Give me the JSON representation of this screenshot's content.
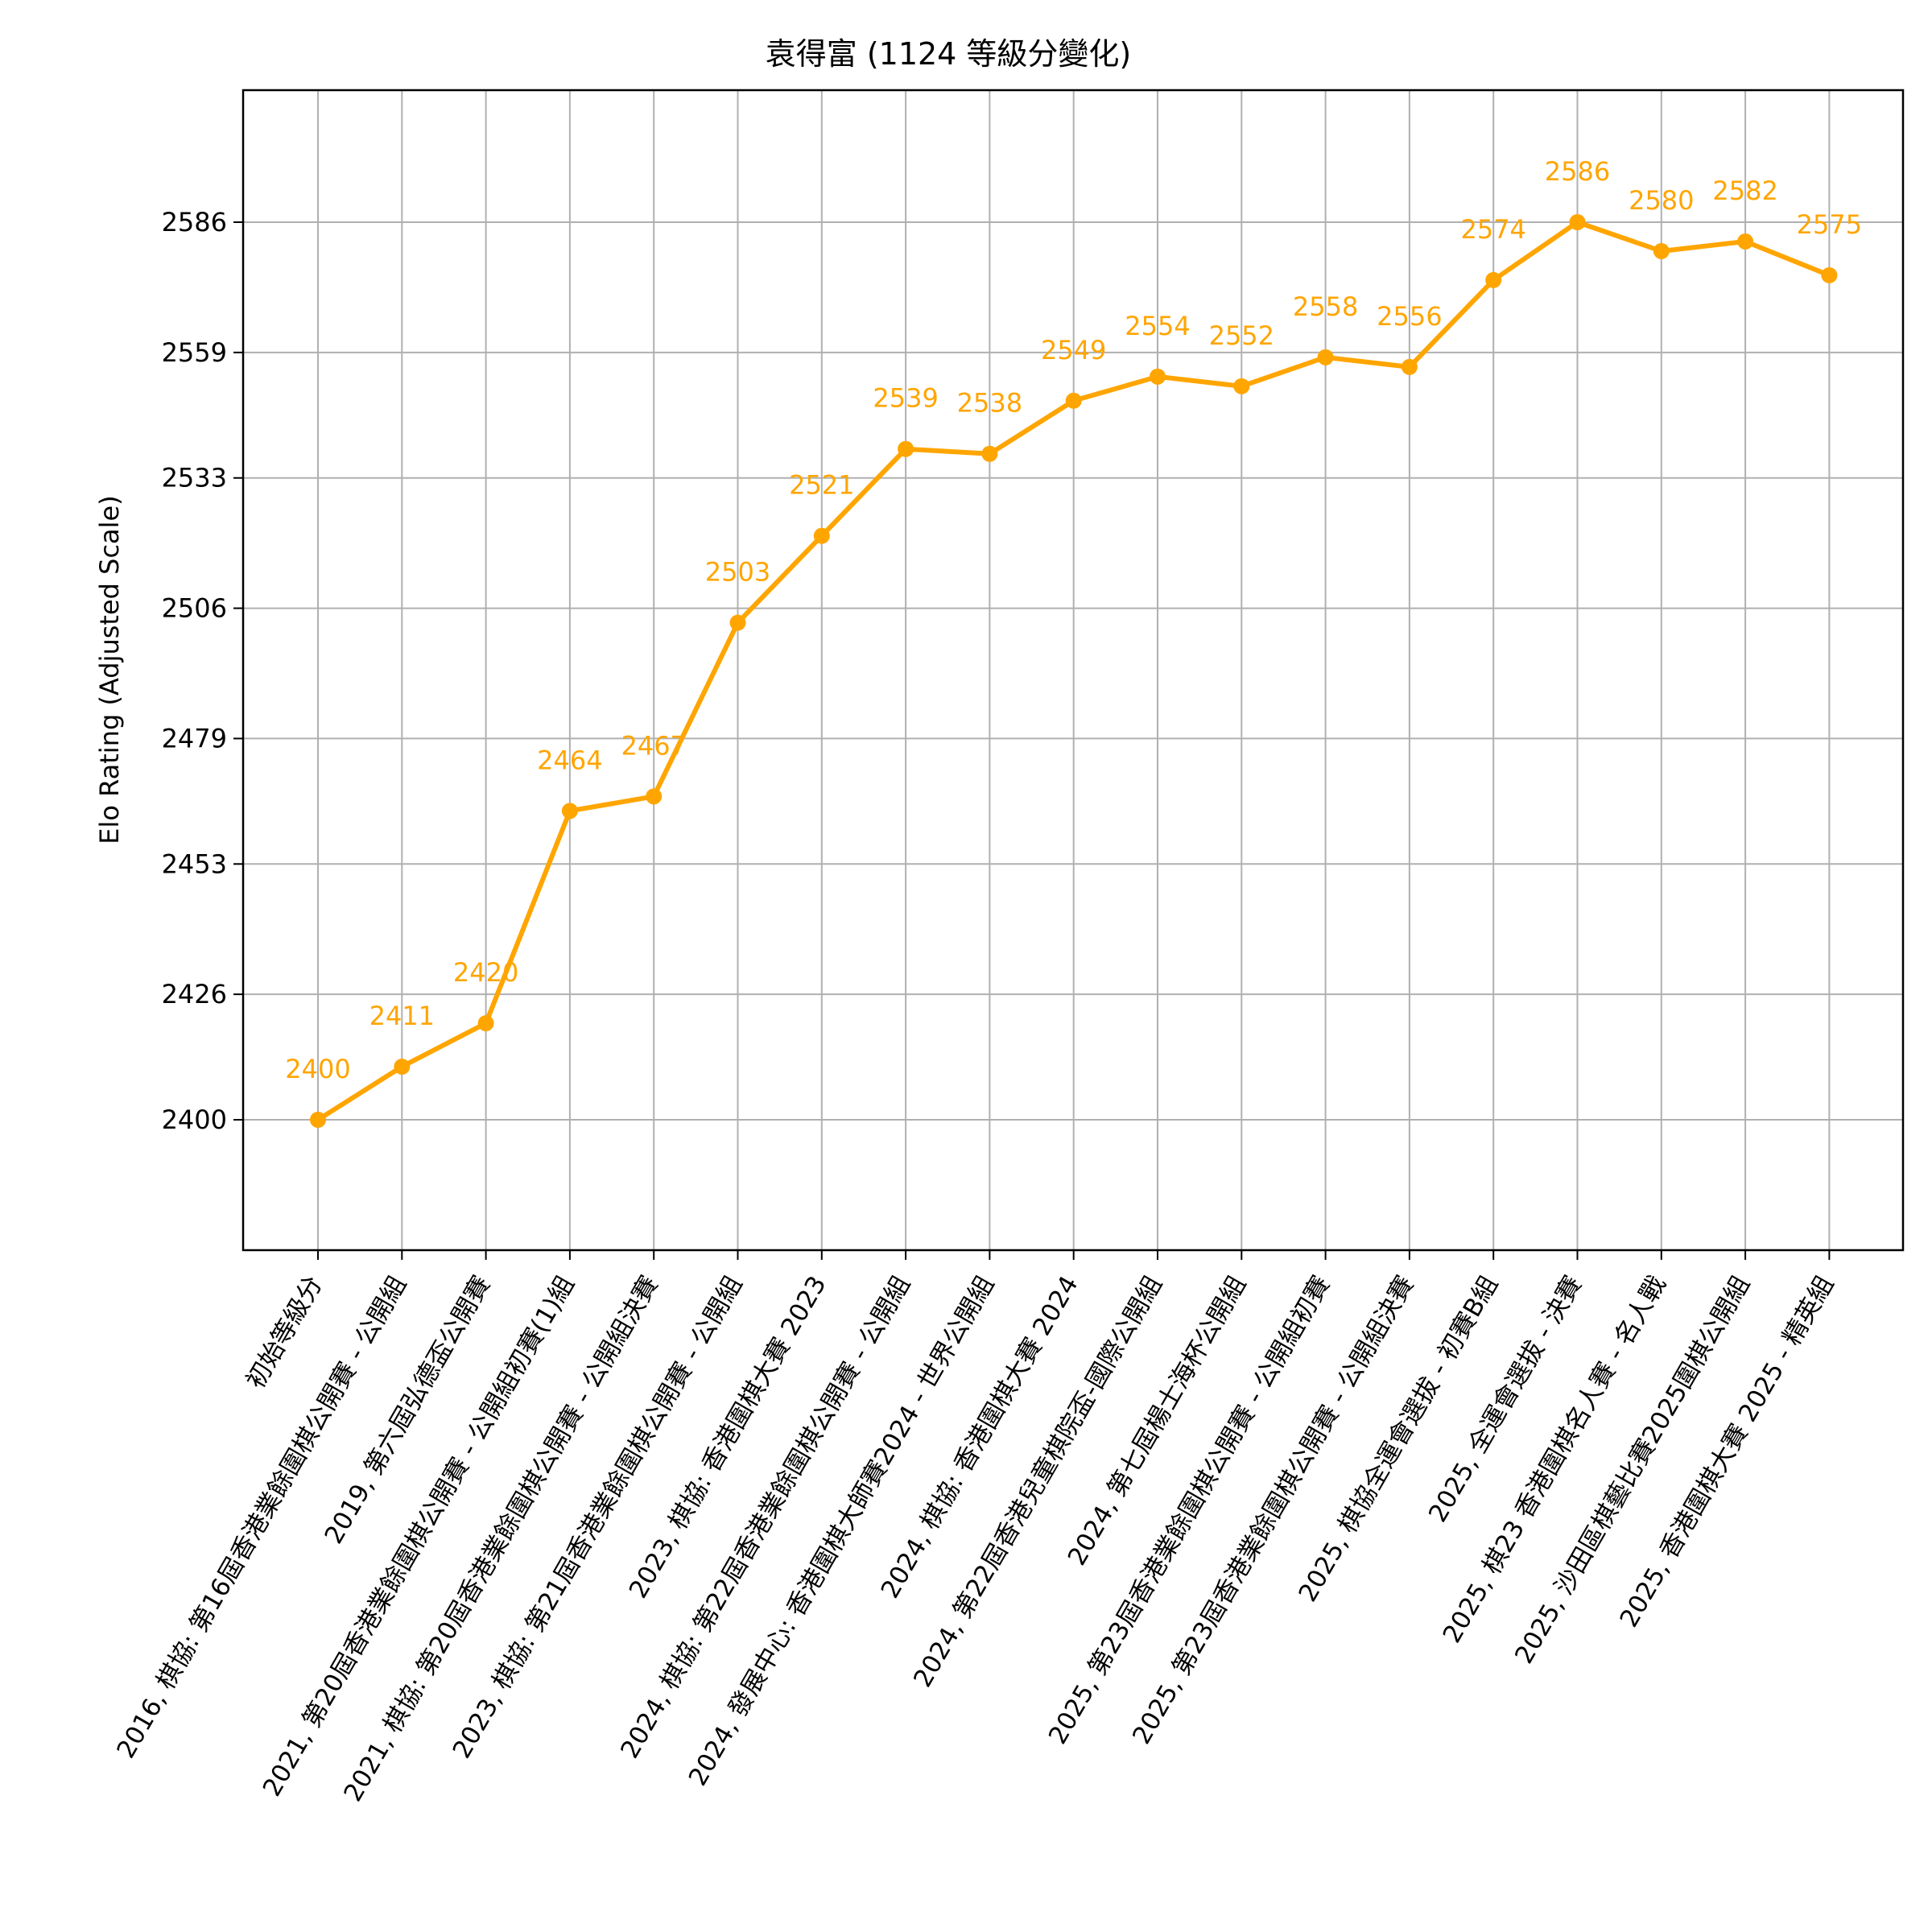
{
  "chart_data": {
    "type": "line",
    "title": "袁得富 (1124 等級分變化)",
    "xlabel": "",
    "ylabel": "Elo Rating (Adjusted Scale)",
    "categories": [
      "初始等級分",
      "2016, 棋協: 第16屆香港業餘圍棋公開賽 - 公開組",
      "2019, 第六屆弘德盃公開賽",
      "2021, 第20屆香港業餘圍棋公開賽 - 公開組初賽(1)組",
      "2021, 棋協: 第20屆香港業餘圍棋公開賽 - 公開組決賽",
      "2023, 棋協: 第21屆香港業餘圍棋公開賽 - 公開組",
      "2023, 棋協: 香港圍棋大賽 2023",
      "2024, 棋協: 第22屆香港業餘圍棋公開賽 - 公開組",
      "2024, 發展中心: 香港圍棋大師賽2024 - 世界公開組",
      "2024, 棋協: 香港圍棋大賽 2024",
      "2024, 第22屆香港兒童棋院盃-國際公開組",
      "2024, 第七屆楊士海杯公開組",
      "2025, 第23屆香港業餘圍棋公開賽 - 公開組初賽",
      "2025, 第23屆香港業餘圍棋公開賽 - 公開組決賽",
      "2025, 棋協全運會選拔 - 初賽B組",
      "2025, 全運會選拔 - 決賽",
      "2025, 棋23  香港圍棋名人賽 - 名人戰",
      "2025, 沙田區棋藝比賽2025圍棋公開組",
      "2025, 香港圍棋大賽 2025 - 精英組"
    ],
    "series": [
      {
        "values": [
          2400,
          2411,
          2420,
          2464,
          2467,
          2503,
          2521,
          2539,
          2538,
          2549,
          2554,
          2552,
          2558,
          2556,
          2574,
          2586,
          2580,
          2582,
          2575
        ],
        "color": "#FFA500",
        "marker": "circle"
      }
    ],
    "data_labels": [
      "2400",
      "2411",
      "2420",
      "2464",
      "2467",
      "2503",
      "2521",
      "2539",
      "2538",
      "2549",
      "2554",
      "2552",
      "2558",
      "2556",
      "2574",
      "2586",
      "2580",
      "2582",
      "2575"
    ],
    "yticks": [
      2400,
      2426,
      2453,
      2479,
      2506,
      2533,
      2559,
      2586
    ],
    "ytick_labels": [
      "2400",
      "2426",
      "2453",
      "2479",
      "2506",
      "2533",
      "2559",
      "2586"
    ],
    "grid": true,
    "legend": "none"
  }
}
